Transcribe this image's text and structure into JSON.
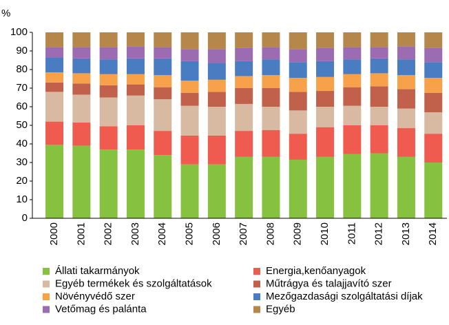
{
  "chart_data": {
    "type": "stacked_bar",
    "y_label": "%",
    "categories": [
      "2000",
      "2001",
      "2002",
      "2003",
      "2004",
      "2005",
      "2006",
      "2007",
      "2008",
      "2009",
      "2010",
      "2011",
      "2012",
      "2013",
      "2014"
    ],
    "series": [
      {
        "name": "Állati takarmányok",
        "color": "#86c13f",
        "values": [
          39.5,
          39,
          37,
          37,
          34,
          29,
          29,
          33,
          33,
          31.5,
          33,
          34.5,
          35,
          33,
          30
        ]
      },
      {
        "name": "Energia,kenőanyagok",
        "color": "#ef5b4f",
        "values": [
          12.5,
          12.5,
          12.5,
          13,
          13,
          15.5,
          15.5,
          14,
          14.5,
          14,
          16,
          15.5,
          15,
          15.5,
          15.5
        ]
      },
      {
        "name": "Egyéb termékek és szolgáltatások",
        "color": "#d8b9a1",
        "values": [
          16,
          15,
          15.5,
          16,
          17,
          16,
          15.5,
          14.5,
          12.5,
          12.5,
          11,
          10.5,
          10,
          10.5,
          11.5
        ]
      },
      {
        "name": "Műtrágya és talajjavító szer",
        "color": "#c1614b",
        "values": [
          5,
          6,
          6.5,
          6,
          6.5,
          7,
          8,
          8.5,
          10,
          10,
          8.5,
          10,
          11,
          10.5,
          10.5
        ]
      },
      {
        "name": "Növényvédő szer",
        "color": "#f7a14b",
        "values": [
          5.5,
          5.5,
          6,
          5.5,
          6.5,
          6.5,
          6.5,
          6.5,
          7,
          7.5,
          7.5,
          7,
          7,
          7.5,
          8
        ]
      },
      {
        "name": "Mezőgazdasági szolgáltatási díjak",
        "color": "#4a7cc1",
        "values": [
          8,
          8,
          8,
          8.5,
          9,
          10.5,
          9,
          8,
          8.5,
          8.5,
          8.5,
          8,
          8,
          8.5,
          8.5
        ]
      },
      {
        "name": "Vetőmag és palánta",
        "color": "#9b6cb1",
        "values": [
          5.5,
          6,
          6.5,
          6.5,
          6,
          6.5,
          7.5,
          7,
          6.5,
          7,
          7,
          6.5,
          6,
          7,
          7.5
        ]
      },
      {
        "name": "Egyéb",
        "color": "#b5874b",
        "values": [
          8,
          8,
          8,
          7.5,
          8,
          9,
          9,
          8.5,
          8,
          9,
          8.5,
          8,
          8,
          7.5,
          8.5
        ]
      }
    ],
    "ylim": [
      0,
      100
    ],
    "yticks": [
      0,
      10,
      20,
      30,
      40,
      50,
      60,
      70,
      80,
      90,
      100
    ],
    "grid": false
  }
}
